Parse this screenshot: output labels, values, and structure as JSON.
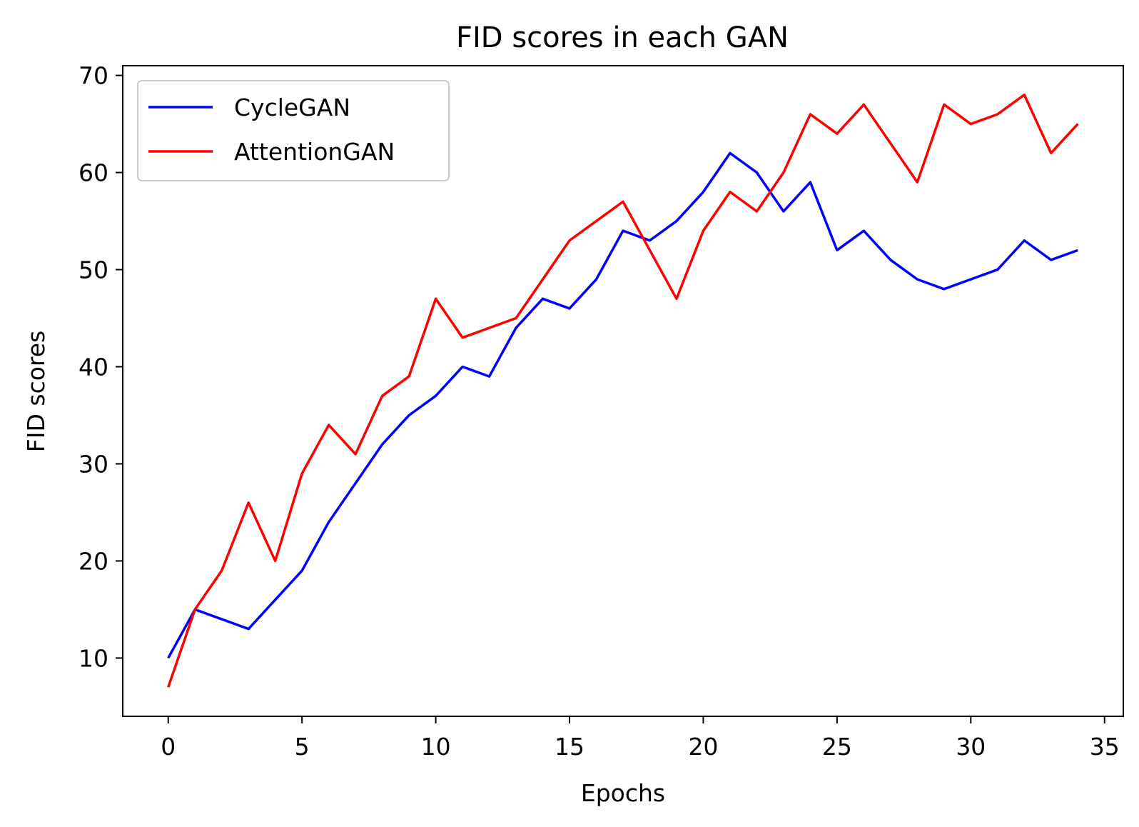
{
  "chart_data": {
    "type": "line",
    "title": "FID scores in each GAN",
    "xlabel": "Epochs",
    "ylabel": "FID scores",
    "xlim": [
      -1.7,
      35.7
    ],
    "ylim": [
      4.0,
      71.0
    ],
    "xticks": [
      0,
      5,
      10,
      15,
      20,
      25,
      30,
      35
    ],
    "yticks": [
      10,
      20,
      30,
      40,
      50,
      60,
      70
    ],
    "grid": false,
    "legend_position": "top-left",
    "x": [
      0,
      1,
      2,
      3,
      4,
      5,
      6,
      7,
      8,
      9,
      10,
      11,
      12,
      13,
      14,
      15,
      16,
      17,
      18,
      19,
      20,
      21,
      22,
      23,
      24,
      25,
      26,
      27,
      28,
      29,
      30,
      31,
      32,
      33,
      34
    ],
    "series": [
      {
        "name": "CycleGAN",
        "color": "#0000ff",
        "values": [
          10,
          15,
          14,
          13,
          16,
          19,
          24,
          28,
          32,
          35,
          37,
          40,
          39,
          44,
          47,
          46,
          49,
          54,
          53,
          55,
          58,
          62,
          60,
          56,
          59,
          52,
          54,
          51,
          49,
          48,
          49,
          50,
          53,
          51,
          52
        ]
      },
      {
        "name": "AttentionGAN",
        "color": "#ff0000",
        "values": [
          7,
          15,
          19,
          26,
          20,
          29,
          34,
          31,
          37,
          39,
          47,
          43,
          44,
          45,
          49,
          53,
          55,
          57,
          52,
          47,
          54,
          58,
          56,
          60,
          66,
          64,
          67,
          63,
          59,
          67,
          65,
          66,
          68,
          62,
          65
        ]
      }
    ]
  }
}
